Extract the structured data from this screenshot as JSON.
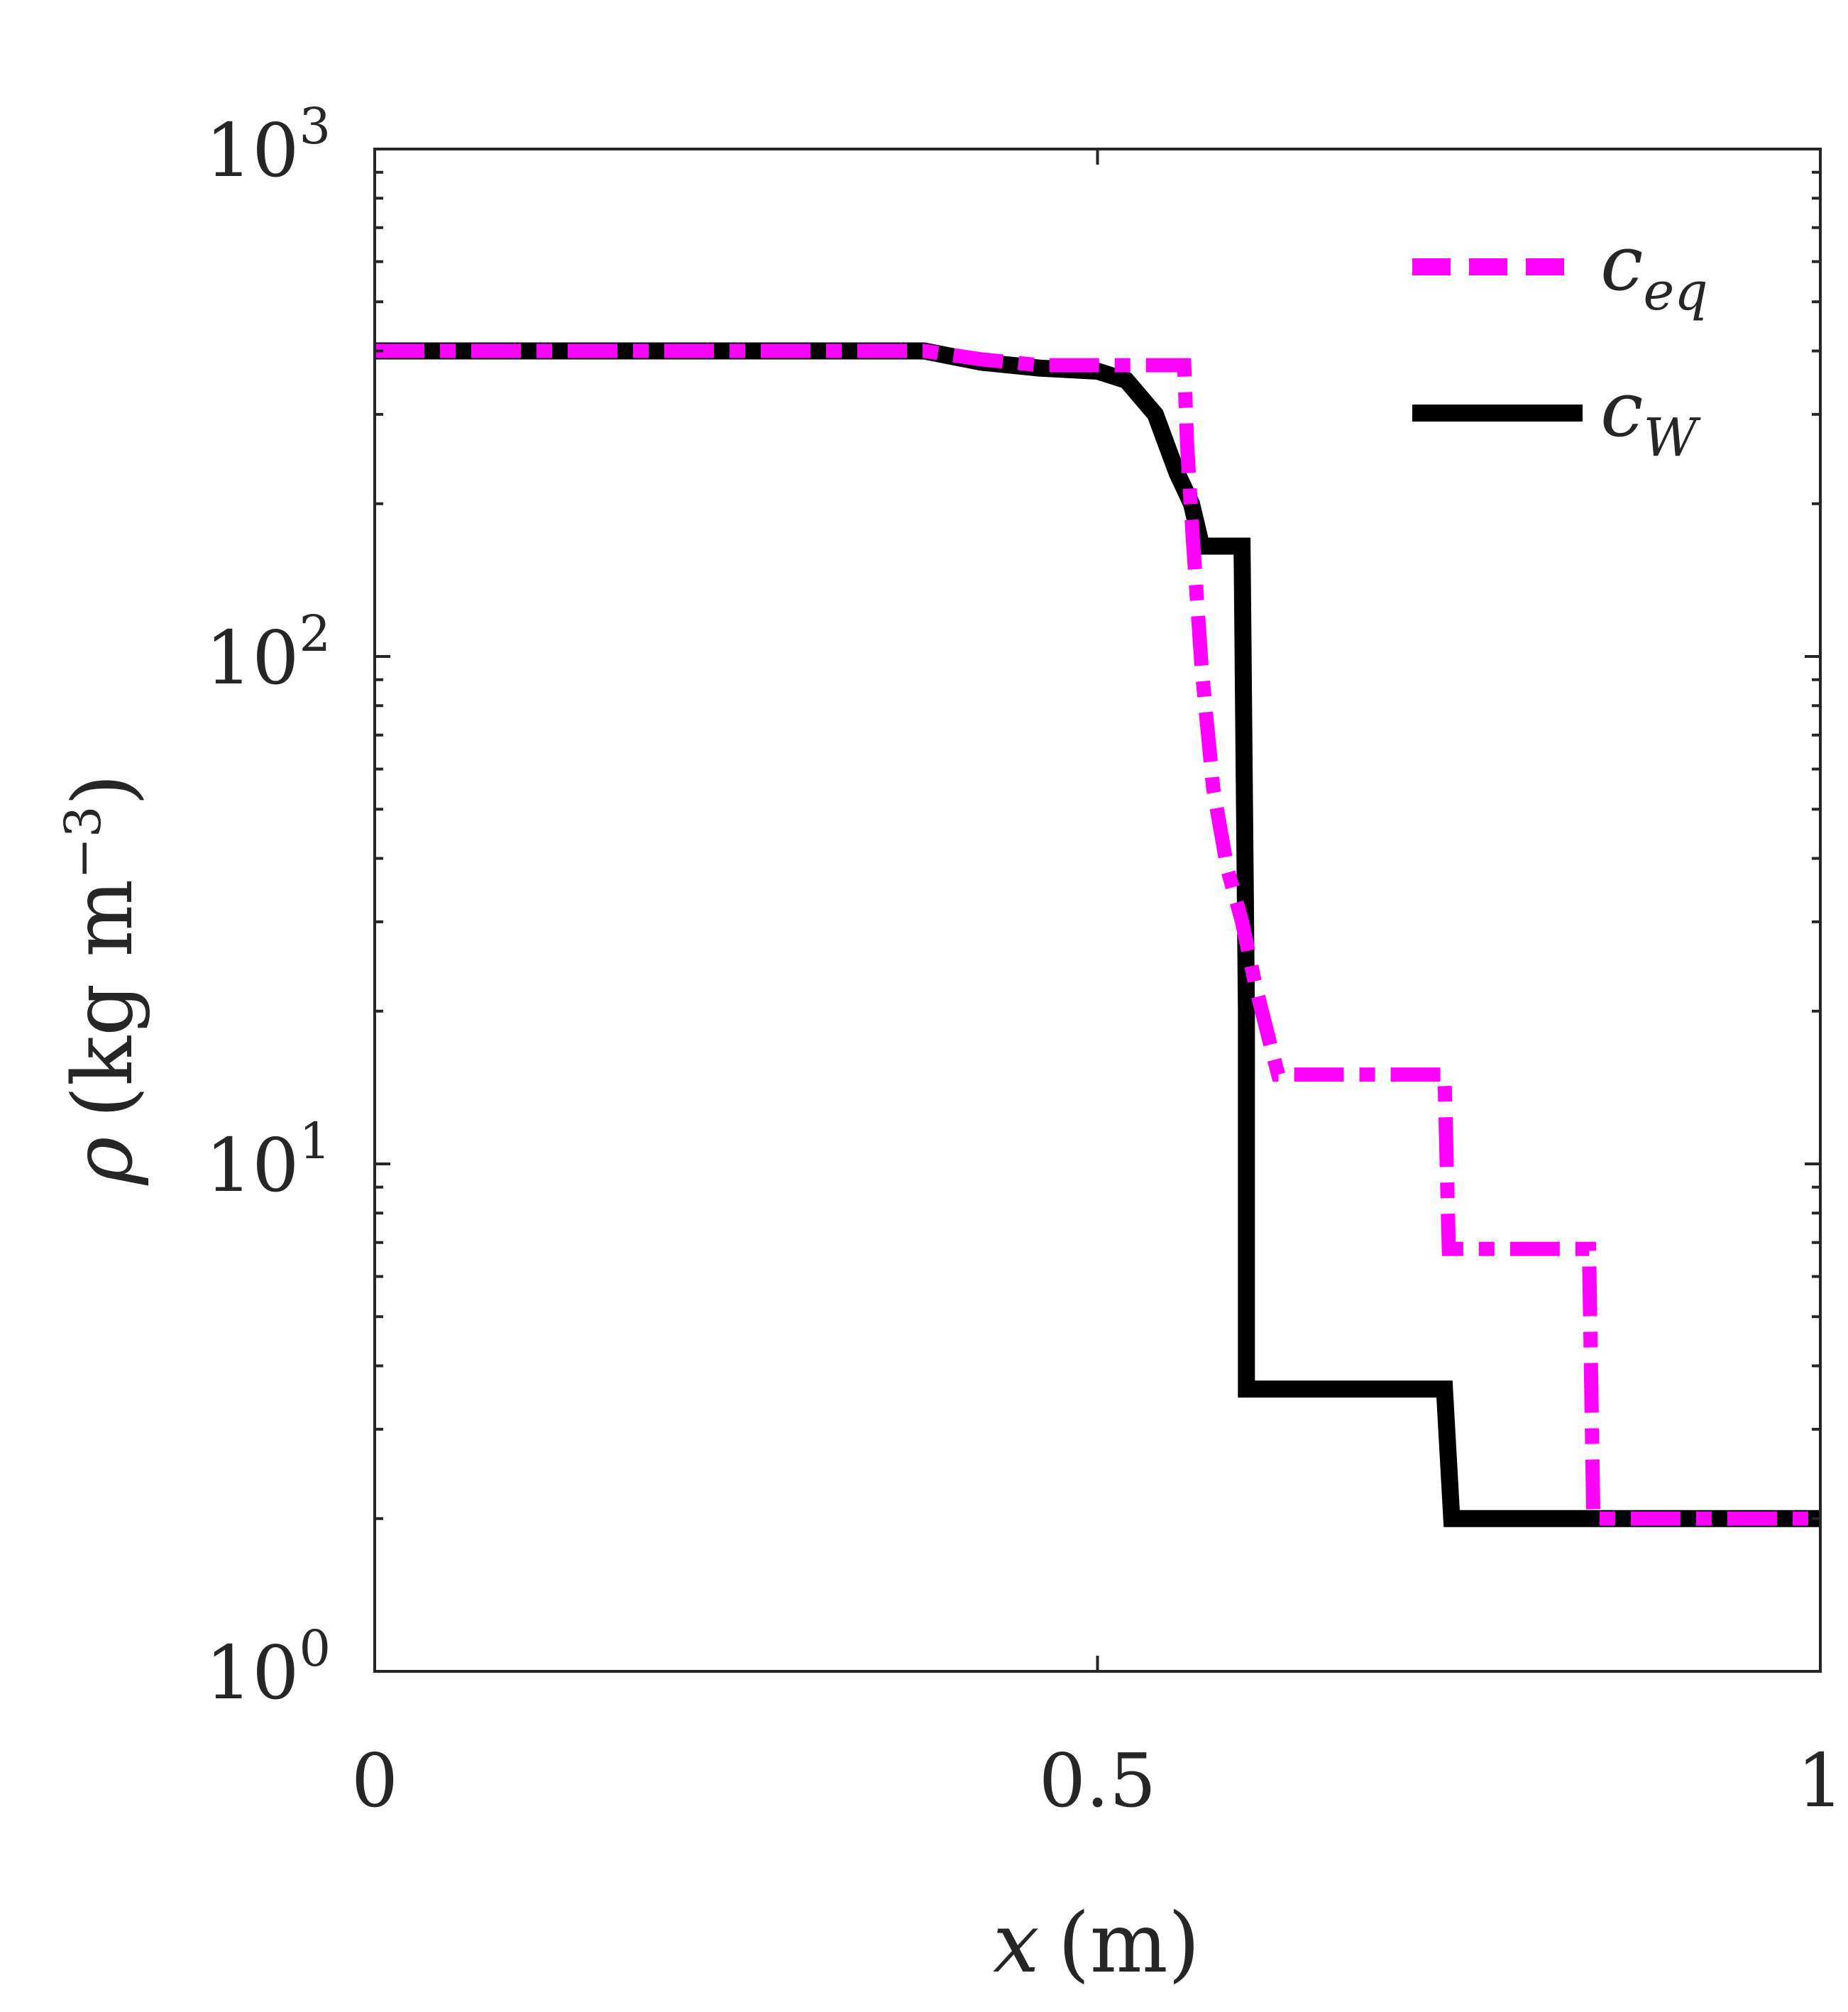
{
  "chart_data": {
    "type": "line",
    "title": "",
    "xlabel": {
      "symbol": "x",
      "unit": "(m)"
    },
    "ylabel": {
      "symbol": "ρ",
      "unit": "(kg m",
      "exponent": "−3",
      "close": ")"
    },
    "xscale": "linear",
    "yscale": "log",
    "xlim": [
      0,
      1
    ],
    "ylim": [
      1,
      1000
    ],
    "grid": false,
    "legend_position": "top-right",
    "x_ticks": [
      {
        "value": 0,
        "label": "0"
      },
      {
        "value": 0.5,
        "label": "0.5"
      },
      {
        "value": 1,
        "label": "1"
      }
    ],
    "y_ticks": [
      {
        "value": 1,
        "base": "10",
        "exp": "0"
      },
      {
        "value": 10,
        "base": "10",
        "exp": "1"
      },
      {
        "value": 100,
        "base": "10",
        "exp": "2"
      },
      {
        "value": 1000,
        "base": "10",
        "exp": "3"
      }
    ],
    "series": [
      {
        "name": "c_W",
        "legend_base": "c",
        "legend_sub": "W",
        "color": "#000000",
        "style": "solid",
        "x": [
          0,
          0.38,
          0.42,
          0.46,
          0.5,
          0.52,
          0.54,
          0.555,
          0.565,
          0.572,
          0.578,
          0.6,
          0.603,
          0.603,
          0.74,
          0.745,
          1.0
        ],
        "y": [
          400,
          400,
          380,
          370,
          365,
          350,
          300,
          230,
          200,
          165,
          165,
          165,
          20,
          3.6,
          3.6,
          2.0,
          2.0
        ]
      },
      {
        "name": "c_eq",
        "legend_base": "c",
        "legend_sub": "eq",
        "color": "#ff00ff",
        "style": "dash-dot",
        "x": [
          0,
          0.38,
          0.42,
          0.46,
          0.5,
          0.56,
          0.562,
          0.566,
          0.572,
          0.58,
          0.59,
          0.6,
          0.61,
          0.62,
          0.625,
          0.74,
          0.743,
          0.84,
          0.843,
          1.0
        ],
        "y": [
          400,
          400,
          385,
          375,
          375,
          375,
          260,
          170,
          95,
          55,
          38,
          30,
          22,
          17,
          15,
          15,
          6.8,
          6.8,
          2.0,
          2.0
        ]
      }
    ]
  }
}
